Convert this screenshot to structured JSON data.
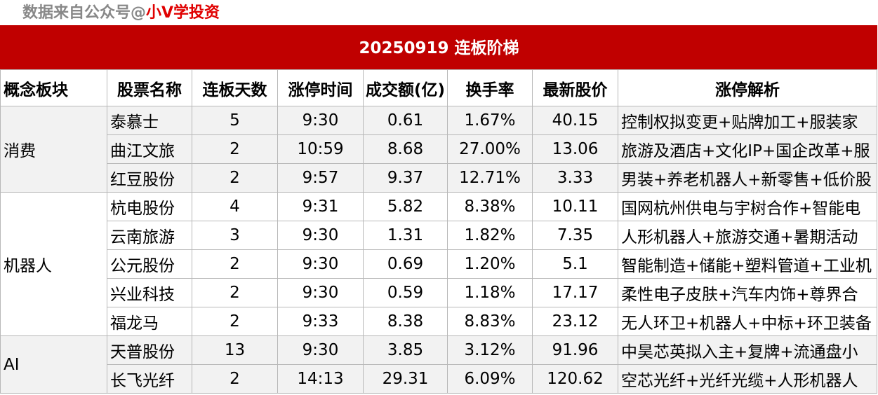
{
  "source_prefix": "数据来自公众号@",
  "source_brand": "小V学投资",
  "title": "20250919  连板阶梯",
  "headers": [
    "概念板块",
    "股票名称",
    "连板天数",
    "涨停时间",
    "成交额(亿)",
    "换手率",
    "最新股价",
    "涨停解析"
  ],
  "groups": [
    {
      "sector": "消费",
      "rows": [
        {
          "name": "泰慕士",
          "days": "5",
          "time": "9:30",
          "amount": "0.61",
          "turnover": "1.67%",
          "price": "40.15",
          "reason": "控制权拟变更+贴牌加工+服装家"
        },
        {
          "name": "曲江文旅",
          "days": "2",
          "time": "10:59",
          "amount": "8.68",
          "turnover": "27.00%",
          "price": "13.06",
          "reason": "旅游及酒店+文化IP+国企改革+服"
        },
        {
          "name": "红豆股份",
          "days": "2",
          "time": "9:57",
          "amount": "9.37",
          "turnover": "12.71%",
          "price": "3.33",
          "reason": "男装+养老机器人+新零售+低价股"
        }
      ]
    },
    {
      "sector": "机器人",
      "rows": [
        {
          "name": "杭电股份",
          "days": "4",
          "time": "9:31",
          "amount": "5.82",
          "turnover": "8.38%",
          "price": "10.11",
          "reason": "国网杭州供电与宇树合作+智能电"
        },
        {
          "name": "云南旅游",
          "days": "3",
          "time": "9:30",
          "amount": "1.31",
          "turnover": "1.82%",
          "price": "7.35",
          "reason": "人形机器人+旅游交通+暑期活动"
        },
        {
          "name": "公元股份",
          "days": "2",
          "time": "9:30",
          "amount": "0.69",
          "turnover": "1.20%",
          "price": "5.1",
          "reason": "智能制造+储能+塑料管道+工业机"
        },
        {
          "name": "兴业科技",
          "days": "2",
          "time": "9:30",
          "amount": "0.59",
          "turnover": "1.18%",
          "price": "17.17",
          "reason": "柔性电子皮肤+汽车内饰+尊界合"
        },
        {
          "name": "福龙马",
          "days": "2",
          "time": "9:33",
          "amount": "8.38",
          "turnover": "8.83%",
          "price": "23.12",
          "reason": "无人环卫+机器人+中标+环卫装备"
        }
      ]
    },
    {
      "sector": "AI",
      "rows": [
        {
          "name": "天普股份",
          "days": "13",
          "time": "9:30",
          "amount": "3.85",
          "turnover": "3.12%",
          "price": "91.96",
          "reason": "中昊芯英拟入主+复牌+流通盘小"
        },
        {
          "name": "长飞光纤",
          "days": "2",
          "time": "14:13",
          "amount": "29.31",
          "turnover": "6.09%",
          "price": "120.62",
          "reason": "空芯光纤+光纤光缆+人形机器人"
        }
      ]
    }
  ]
}
